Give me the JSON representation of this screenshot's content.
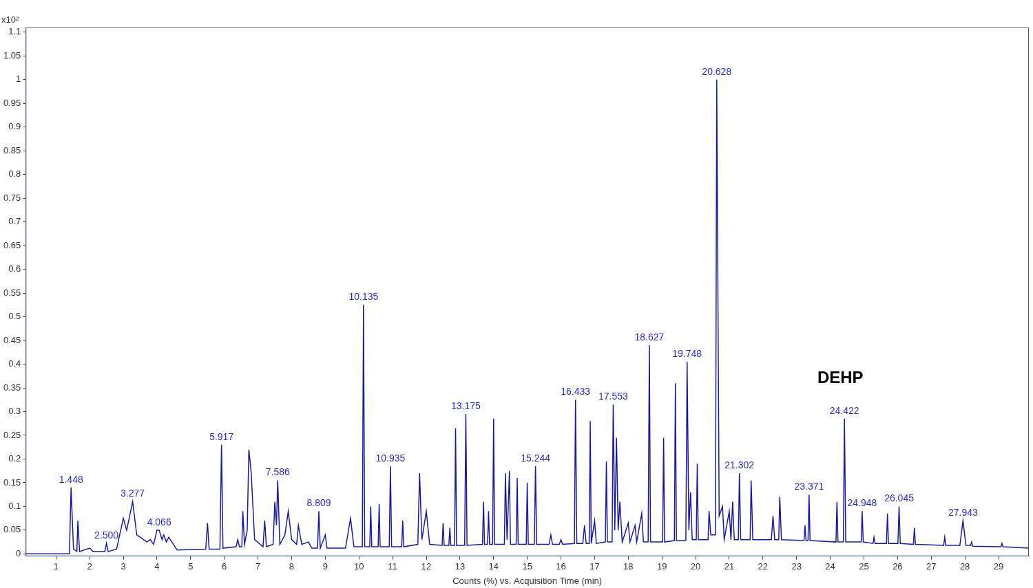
{
  "chart_data": {
    "type": "line",
    "x_label": "Counts (%) vs. Acquisition Time (min)",
    "y_multiplier": "x10²",
    "color": "#1a1aa0",
    "grid": false,
    "xlim": [
      0.1,
      29.9
    ],
    "xticks": [
      1,
      2,
      3,
      4,
      5,
      6,
      7,
      8,
      9,
      10,
      11,
      12,
      13,
      14,
      15,
      16,
      17,
      18,
      19,
      20,
      21,
      22,
      23,
      24,
      25,
      26,
      27,
      28,
      29
    ],
    "ylim": [
      -0.005,
      1.11
    ],
    "yticks": [
      0,
      0.05,
      0.1,
      0.15,
      0.2,
      0.25,
      0.3,
      0.35,
      0.4,
      0.45,
      0.5,
      0.55,
      0.6,
      0.65,
      0.7,
      0.75,
      0.8,
      0.85,
      0.9,
      0.95,
      1,
      1.05,
      1.1
    ],
    "x": [
      0.1,
      1.4,
      1.448,
      1.52,
      1.62,
      1.65,
      1.7,
      2.0,
      2.1,
      2.45,
      2.5,
      2.55,
      2.8,
      3.0,
      3.1,
      3.277,
      3.4,
      3.5,
      3.7,
      3.8,
      3.9,
      4.0,
      4.066,
      4.15,
      4.2,
      4.28,
      4.35,
      4.6,
      5.45,
      5.5,
      5.55,
      5.87,
      5.917,
      5.96,
      6.35,
      6.4,
      6.45,
      6.52,
      6.55,
      6.6,
      6.68,
      6.73,
      6.8,
      6.9,
      7.15,
      7.2,
      7.25,
      7.45,
      7.5,
      7.55,
      7.586,
      7.65,
      7.8,
      7.9,
      8.0,
      8.15,
      8.2,
      8.3,
      8.5,
      8.6,
      8.77,
      8.809,
      8.85,
      9.0,
      9.05,
      9.6,
      9.75,
      9.85,
      10.1,
      10.135,
      10.17,
      10.32,
      10.35,
      10.38,
      10.57,
      10.6,
      10.63,
      10.9,
      10.935,
      10.97,
      11.27,
      11.3,
      11.33,
      11.75,
      11.8,
      11.87,
      12.0,
      12.1,
      12.47,
      12.5,
      12.53,
      12.67,
      12.7,
      12.73,
      12.84,
      12.87,
      12.9,
      13.14,
      13.175,
      13.21,
      13.67,
      13.7,
      13.73,
      13.82,
      13.85,
      13.88,
      13.97,
      14.0,
      14.03,
      14.32,
      14.35,
      14.4,
      14.47,
      14.5,
      14.67,
      14.7,
      14.73,
      14.97,
      15.0,
      15.03,
      15.21,
      15.244,
      15.28,
      15.65,
      15.7,
      15.75,
      15.95,
      16.0,
      16.05,
      16.4,
      16.433,
      16.47,
      16.65,
      16.7,
      16.75,
      16.84,
      16.87,
      16.9,
      17.0,
      17.05,
      17.32,
      17.35,
      17.38,
      17.52,
      17.553,
      17.6,
      17.65,
      17.7,
      17.75,
      17.82,
      18.0,
      18.05,
      18.2,
      18.25,
      18.4,
      18.45,
      18.59,
      18.627,
      18.66,
      19.02,
      19.05,
      19.08,
      19.37,
      19.4,
      19.43,
      19.71,
      19.748,
      19.8,
      19.85,
      19.9,
      20.02,
      20.05,
      20.08,
      20.37,
      20.4,
      20.45,
      20.59,
      20.628,
      20.7,
      20.8,
      20.85,
      21.0,
      21.05,
      21.1,
      21.15,
      21.27,
      21.302,
      21.34,
      21.62,
      21.65,
      21.7,
      22.25,
      22.3,
      22.35,
      22.47,
      22.5,
      22.55,
      23.22,
      23.25,
      23.28,
      23.34,
      23.371,
      23.4,
      24.17,
      24.2,
      24.23,
      24.39,
      24.422,
      24.46,
      24.92,
      24.948,
      24.98,
      25.27,
      25.3,
      25.33,
      25.67,
      25.7,
      25.73,
      26.01,
      26.045,
      26.08,
      26.47,
      26.5,
      26.53,
      27.37,
      27.4,
      27.43,
      27.85,
      27.943,
      28.03,
      28.17,
      28.2,
      28.23,
      29.07,
      29.1,
      29.13,
      29.9
    ],
    "values": [
      0,
      0,
      0.14,
      0.01,
      0.005,
      0.07,
      0.005,
      0.012,
      0.005,
      0.005,
      0.022,
      0.005,
      0.01,
      0.075,
      0.05,
      0.11,
      0.04,
      0.035,
      0.025,
      0.03,
      0.02,
      0.05,
      0.05,
      0.03,
      0.04,
      0.025,
      0.035,
      0.008,
      0.01,
      0.065,
      0.01,
      0.01,
      0.23,
      0.012,
      0.015,
      0.03,
      0.015,
      0.015,
      0.09,
      0.02,
      0.05,
      0.22,
      0.17,
      0.03,
      0.015,
      0.07,
      0.015,
      0.02,
      0.11,
      0.06,
      0.155,
      0.02,
      0.04,
      0.09,
      0.03,
      0.02,
      0.06,
      0.02,
      0.025,
      0.012,
      0.012,
      0.09,
      0.012,
      0.04,
      0.012,
      0.012,
      0.075,
      0.015,
      0.015,
      0.525,
      0.015,
      0.015,
      0.1,
      0.015,
      0.015,
      0.105,
      0.015,
      0.015,
      0.185,
      0.015,
      0.015,
      0.07,
      0.015,
      0.02,
      0.17,
      0.03,
      0.09,
      0.02,
      0.018,
      0.065,
      0.018,
      0.018,
      0.055,
      0.018,
      0.018,
      0.265,
      0.018,
      0.018,
      0.295,
      0.018,
      0.02,
      0.11,
      0.02,
      0.02,
      0.09,
      0.02,
      0.02,
      0.285,
      0.02,
      0.02,
      0.17,
      0.03,
      0.175,
      0.02,
      0.02,
      0.16,
      0.02,
      0.02,
      0.15,
      0.02,
      0.02,
      0.185,
      0.02,
      0.02,
      0.04,
      0.02,
      0.02,
      0.03,
      0.02,
      0.022,
      0.325,
      0.022,
      0.022,
      0.06,
      0.022,
      0.022,
      0.28,
      0.022,
      0.07,
      0.022,
      0.025,
      0.195,
      0.025,
      0.025,
      0.315,
      0.05,
      0.245,
      0.05,
      0.11,
      0.025,
      0.065,
      0.025,
      0.06,
      0.025,
      0.085,
      0.025,
      0.025,
      0.44,
      0.025,
      0.025,
      0.245,
      0.025,
      0.028,
      0.36,
      0.028,
      0.028,
      0.405,
      0.05,
      0.13,
      0.03,
      0.03,
      0.19,
      0.03,
      0.03,
      0.09,
      0.04,
      0.04,
      1,
      0.08,
      0.1,
      0.03,
      0.09,
      0.03,
      0.11,
      0.03,
      0.03,
      0.17,
      0.03,
      0.03,
      0.155,
      0.03,
      0.03,
      0.08,
      0.03,
      0.03,
      0.12,
      0.03,
      0.028,
      0.06,
      0.028,
      0.028,
      0.125,
      0.028,
      0.025,
      0.11,
      0.025,
      0.025,
      0.285,
      0.025,
      0.025,
      0.09,
      0.025,
      0.022,
      0.035,
      0.022,
      0.022,
      0.085,
      0.022,
      0.022,
      0.1,
      0.022,
      0.02,
      0.055,
      0.02,
      0.018,
      0.035,
      0.018,
      0.018,
      0.07,
      0.018,
      0.018,
      0.025,
      0.016,
      0.015,
      0.022,
      0.015,
      0.012
    ],
    "peak_labels": [
      {
        "text": "1.448",
        "x": 1.448,
        "y": 0.14
      },
      {
        "text": "2.500",
        "x": 2.5,
        "y": 0.022
      },
      {
        "text": "3.277",
        "x": 3.277,
        "y": 0.11
      },
      {
        "text": "4.066",
        "x": 4.066,
        "y": 0.05
      },
      {
        "text": "5.917",
        "x": 5.917,
        "y": 0.23
      },
      {
        "text": "7.586",
        "x": 7.586,
        "y": 0.155
      },
      {
        "text": "8.809",
        "x": 8.809,
        "y": 0.09
      },
      {
        "text": "10.135",
        "x": 10.135,
        "y": 0.525
      },
      {
        "text": "10.935",
        "x": 10.935,
        "y": 0.185
      },
      {
        "text": "13.175",
        "x": 13.175,
        "y": 0.295
      },
      {
        "text": "15.244",
        "x": 15.244,
        "y": 0.185
      },
      {
        "text": "16.433",
        "x": 16.433,
        "y": 0.325
      },
      {
        "text": "17.553",
        "x": 17.553,
        "y": 0.315
      },
      {
        "text": "18.627",
        "x": 18.627,
        "y": 0.44
      },
      {
        "text": "19.748",
        "x": 19.748,
        "y": 0.405
      },
      {
        "text": "20.628",
        "x": 20.628,
        "y": 1
      },
      {
        "text": "21.302",
        "x": 21.302,
        "y": 0.17
      },
      {
        "text": "23.371",
        "x": 23.371,
        "y": 0.125
      },
      {
        "text": "24.422",
        "x": 24.422,
        "y": 0.285
      },
      {
        "text": "24.948",
        "x": 24.948,
        "y": 0.09
      },
      {
        "text": "26.045",
        "x": 26.045,
        "y": 0.1
      },
      {
        "text": "27.943",
        "x": 27.943,
        "y": 0.07
      }
    ],
    "annotations": [
      {
        "text": "DEHP",
        "x": 24.3,
        "y": 0.37
      }
    ]
  }
}
